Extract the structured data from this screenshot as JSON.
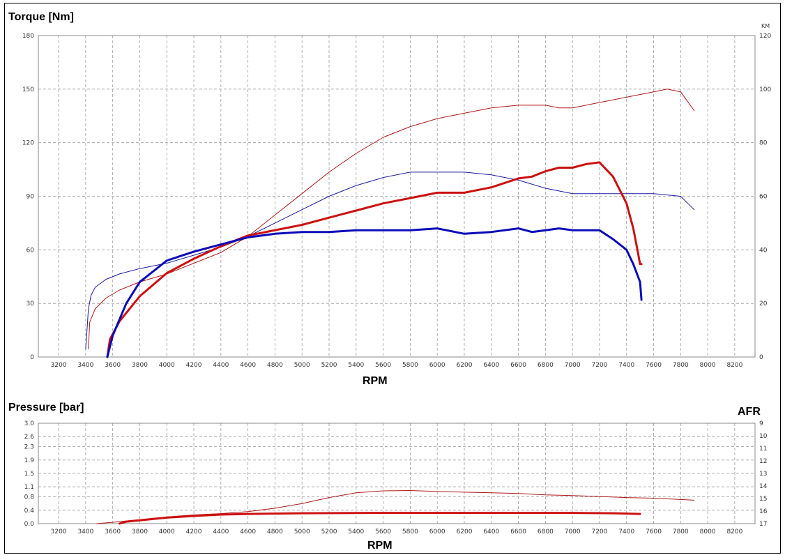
{
  "chart_data": [
    {
      "type": "line",
      "title": "Torque [Nm]",
      "xlabel": "RPM",
      "ylabel": "Torque [Nm]",
      "y2label": "KM",
      "xlim": [
        3050,
        8350
      ],
      "ylim": [
        0,
        180
      ],
      "y2lim": [
        0,
        120
      ],
      "xticks": [
        3200,
        3400,
        3600,
        3800,
        4000,
        4200,
        4400,
        4600,
        4800,
        5000,
        5200,
        5400,
        5600,
        5800,
        6000,
        6200,
        6400,
        6600,
        6800,
        7000,
        7200,
        7400,
        7600,
        7800,
        8000,
        8200
      ],
      "yticks": [
        0,
        30,
        60,
        90,
        120,
        150,
        180
      ],
      "y2ticks": [
        0,
        20,
        40,
        60,
        80,
        100,
        120
      ],
      "grid": true,
      "series": [
        {
          "color": "#b01818",
          "width": 1,
          "axis": "y2",
          "x": [
            3420,
            3430,
            3470,
            3550,
            3650,
            3800,
            4000,
            4200,
            4400,
            4600,
            4800,
            5000,
            5200,
            5400,
            5600,
            5800,
            6000,
            6200,
            6400,
            6600,
            6800,
            6900,
            7000,
            7200,
            7400,
            7600,
            7700,
            7800,
            7900
          ],
          "y": [
            3,
            13,
            18,
            22,
            25,
            28,
            31,
            35,
            39,
            45,
            53,
            61,
            69,
            76,
            82,
            86,
            89,
            91,
            93,
            94,
            94,
            93,
            93,
            95,
            97,
            99,
            100,
            99,
            92
          ]
        },
        {
          "color": "#1a1aa0",
          "width": 1,
          "axis": "y2",
          "x": [
            3400,
            3410,
            3420,
            3440,
            3470,
            3550,
            3650,
            3800,
            4000,
            4200,
            4400,
            4600,
            4800,
            5000,
            5200,
            5400,
            5600,
            5800,
            6000,
            6200,
            6400,
            6600,
            6800,
            7000,
            7200,
            7400,
            7600,
            7800,
            7900
          ],
          "y": [
            3,
            10,
            18,
            23,
            26,
            29,
            31,
            33,
            35,
            38,
            41,
            45,
            50,
            55,
            60,
            64,
            67,
            69,
            69,
            69,
            68,
            66,
            63,
            61,
            61,
            61,
            61,
            60,
            55
          ]
        },
        {
          "color": "#cc1010",
          "width": 3,
          "axis": "y",
          "x": [
            3560,
            3580,
            3650,
            3800,
            4000,
            4200,
            4400,
            4600,
            4800,
            5000,
            5200,
            5400,
            5600,
            5800,
            6000,
            6200,
            6400,
            6600,
            6700,
            6800,
            6900,
            7000,
            7100,
            7200,
            7300,
            7400,
            7450,
            7480,
            7500,
            7510
          ],
          "y": [
            0,
            10,
            20,
            34,
            47,
            55,
            62,
            68,
            71,
            74,
            78,
            82,
            86,
            89,
            92,
            92,
            95,
            100,
            101,
            104,
            106,
            106,
            108,
            109,
            101,
            86,
            72,
            60,
            52,
            52
          ]
        },
        {
          "color": "#0a0ab8",
          "width": 3,
          "axis": "y",
          "x": [
            3560,
            3600,
            3700,
            3800,
            4000,
            4200,
            4400,
            4600,
            4800,
            5000,
            5200,
            5400,
            5600,
            5800,
            6000,
            6200,
            6400,
            6600,
            6700,
            6800,
            6900,
            7000,
            7100,
            7200,
            7300,
            7400,
            7450,
            7500,
            7510
          ],
          "y": [
            0,
            12,
            30,
            42,
            54,
            59,
            63,
            67,
            69,
            70,
            70,
            71,
            71,
            71,
            72,
            69,
            70,
            72,
            70,
            71,
            72,
            71,
            71,
            71,
            66,
            60,
            52,
            42,
            32
          ]
        }
      ]
    },
    {
      "type": "line",
      "title": "Pressure [bar]",
      "xlabel": "RPM",
      "ylabel": "Pressure [bar]",
      "y2label": "AFR",
      "xlim": [
        3050,
        8350
      ],
      "ylim": [
        0,
        3.0
      ],
      "y2lim": [
        9,
        17
      ],
      "y2_inverted": true,
      "xticks": [
        3200,
        3400,
        3600,
        3800,
        4000,
        4200,
        4400,
        4600,
        4800,
        5000,
        5200,
        5400,
        5600,
        5800,
        6000,
        6200,
        6400,
        6600,
        6800,
        7000,
        7200,
        7400,
        7600,
        7800,
        8000,
        8200
      ],
      "yticks": [
        "0.0",
        "0.4",
        "0.8",
        "1.1",
        "1.5",
        "1.9",
        "2.3",
        "2.6",
        "3.0"
      ],
      "y2ticks": [
        "9",
        "10",
        "11",
        "12",
        "13",
        "14",
        "15",
        "16",
        "17"
      ],
      "grid": true,
      "series": [
        {
          "color": "#b01818",
          "width": 1,
          "x": [
            3480,
            3600,
            3800,
            4000,
            4200,
            4400,
            4600,
            4800,
            5000,
            5200,
            5400,
            5600,
            5800,
            6000,
            6200,
            6400,
            6600,
            6800,
            7000,
            7200,
            7400,
            7600,
            7800,
            7900
          ],
          "y": [
            0,
            0.04,
            0.12,
            0.2,
            0.26,
            0.3,
            0.36,
            0.46,
            0.6,
            0.78,
            0.92,
            0.98,
            0.99,
            0.96,
            0.94,
            0.92,
            0.9,
            0.86,
            0.84,
            0.81,
            0.78,
            0.76,
            0.72,
            0.7
          ]
        },
        {
          "color": "#cc1010",
          "width": 3,
          "x": [
            3650,
            3700,
            3800,
            4000,
            4200,
            4400,
            4600,
            4800,
            5000,
            5500,
            6000,
            6500,
            7000,
            7300,
            7500
          ],
          "y": [
            0,
            0.06,
            0.1,
            0.18,
            0.23,
            0.27,
            0.29,
            0.3,
            0.31,
            0.32,
            0.32,
            0.32,
            0.32,
            0.31,
            0.29
          ]
        }
      ]
    }
  ]
}
